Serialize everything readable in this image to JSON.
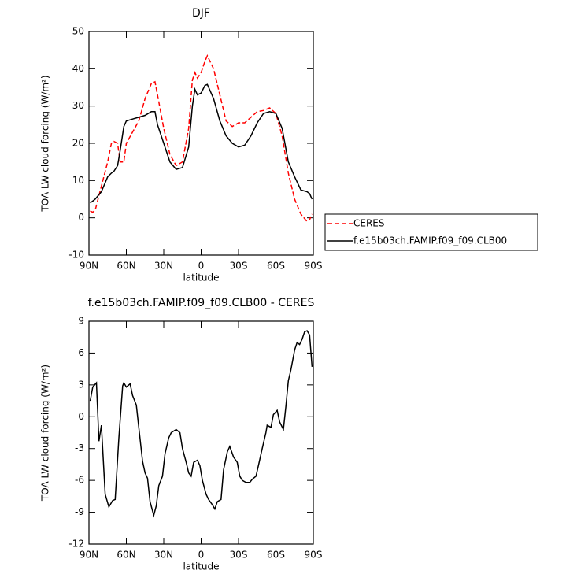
{
  "chart_data": [
    {
      "type": "line",
      "title": "DJF",
      "x_label": "latitude",
      "y_label": "TOA LW cloud forcing (W/m²)",
      "x": [
        89,
        87,
        85,
        80,
        75,
        72,
        70,
        67,
        65,
        62,
        60,
        55,
        50,
        45,
        40,
        37,
        35,
        30,
        25,
        20,
        15,
        10,
        7,
        5,
        3,
        0,
        -3,
        -5,
        -10,
        -15,
        -20,
        -25,
        -30,
        -35,
        -40,
        -45,
        -50,
        -55,
        -60,
        -65,
        -70,
        -75,
        -80,
        -85,
        -87,
        -89
      ],
      "series": [
        {
          "name": "CERES",
          "color": "#ff0000",
          "dashed": true,
          "values": [
            1.8,
            1.5,
            2,
            8.5,
            15,
            20,
            20.5,
            20,
            15,
            15,
            20,
            23,
            26,
            32,
            36,
            36.5,
            33,
            24,
            17,
            14,
            15,
            24,
            37,
            39,
            37.5,
            39,
            42,
            43.5,
            40,
            33,
            26,
            24.5,
            25.5,
            25.5,
            27,
            28.5,
            28.8,
            29.5,
            28,
            22,
            12,
            5,
            1,
            -1,
            -0.5,
            1
          ]
        },
        {
          "name": "f.e15b03ch.FAMIP.f09_f09.CLB00",
          "color": "#000000",
          "dashed": false,
          "values": [
            4,
            4.5,
            5,
            7,
            11,
            12,
            12.5,
            14,
            18,
            24.5,
            26,
            26.5,
            27,
            27.5,
            28.5,
            28.5,
            25,
            20,
            15,
            13,
            13.5,
            19,
            30,
            34.5,
            33,
            33.5,
            35.5,
            35.8,
            32,
            26,
            22,
            20,
            19,
            19.5,
            22,
            25.5,
            28,
            28.5,
            28,
            24,
            15,
            11,
            7.5,
            7,
            6.5,
            5
          ]
        }
      ],
      "xlim": [
        90,
        -90
      ],
      "xticks": [
        {
          "value": 90,
          "label": "90N"
        },
        {
          "value": 60,
          "label": "60N"
        },
        {
          "value": 30,
          "label": "30N"
        },
        0,
        {
          "value": -30,
          "label": "30S"
        },
        {
          "value": -60,
          "label": "60S"
        },
        {
          "value": -90,
          "label": "90S"
        }
      ],
      "ylim": [
        -10,
        50
      ],
      "yticks": [
        -10,
        0,
        10,
        20,
        30,
        40,
        50
      ],
      "legend": "right"
    },
    {
      "type": "line",
      "title": "f.e15b03ch.FAMIP.f09_f09.CLB00 - CERES",
      "x_label": "latitude",
      "y_label": "TOA LW cloud forcing (W/m²)",
      "x": [
        89,
        87,
        84,
        82,
        80,
        77,
        74,
        71,
        69,
        66,
        63,
        62,
        60,
        57,
        55,
        52,
        50,
        47,
        45,
        43,
        41,
        38,
        36,
        34,
        31,
        29,
        26,
        24,
        20,
        17,
        15,
        12,
        10,
        8,
        6,
        3,
        1,
        -1,
        -4,
        -6,
        -9,
        -11,
        -13,
        -16,
        -18,
        -21,
        -23,
        -26,
        -29,
        -31,
        -33,
        -36,
        -39,
        -41,
        -44,
        -46,
        -49,
        -52,
        -53,
        -56,
        -58,
        -61,
        -63,
        -66,
        -68,
        -70,
        -72,
        -75,
        -77,
        -79,
        -81,
        -83,
        -85,
        -87,
        -89
      ],
      "color": "#000000",
      "values": [
        1.5,
        2.8,
        3.2,
        -2.3,
        -0.8,
        -7.3,
        -8.5,
        -7.9,
        -7.8,
        -2,
        2.9,
        3.2,
        2.8,
        3.1,
        2,
        1.1,
        -1,
        -4.2,
        -5.3,
        -5.8,
        -8,
        -9.3,
        -8.4,
        -6.5,
        -5.6,
        -3.5,
        -2,
        -1.5,
        -1.2,
        -1.5,
        -3,
        -4.3,
        -5.3,
        -5.6,
        -4.3,
        -4.1,
        -4.6,
        -6,
        -7.3,
        -7.8,
        -8.3,
        -8.7,
        -8,
        -7.8,
        -5,
        -3.3,
        -2.8,
        -3.8,
        -4.3,
        -5.6,
        -6,
        -6.2,
        -6.2,
        -5.9,
        -5.6,
        -4.6,
        -3,
        -1.5,
        -0.8,
        -1,
        0.2,
        0.6,
        -0.5,
        -1.2,
        1,
        3.4,
        4.4,
        6.3,
        7,
        6.8,
        7.3,
        8,
        8.1,
        7.7,
        4.7
      ],
      "xlim": [
        90,
        -90
      ],
      "xticks": [
        {
          "value": 90,
          "label": "90N"
        },
        {
          "value": 60,
          "label": "60N"
        },
        {
          "value": 30,
          "label": "30N"
        },
        0,
        {
          "value": -30,
          "label": "30S"
        },
        {
          "value": -60,
          "label": "60S"
        },
        {
          "value": -90,
          "label": "90S"
        }
      ],
      "ylim": [
        -12,
        9
      ],
      "yticks": [
        -12,
        -9,
        -6,
        -3,
        0,
        3,
        6,
        9
      ]
    }
  ]
}
